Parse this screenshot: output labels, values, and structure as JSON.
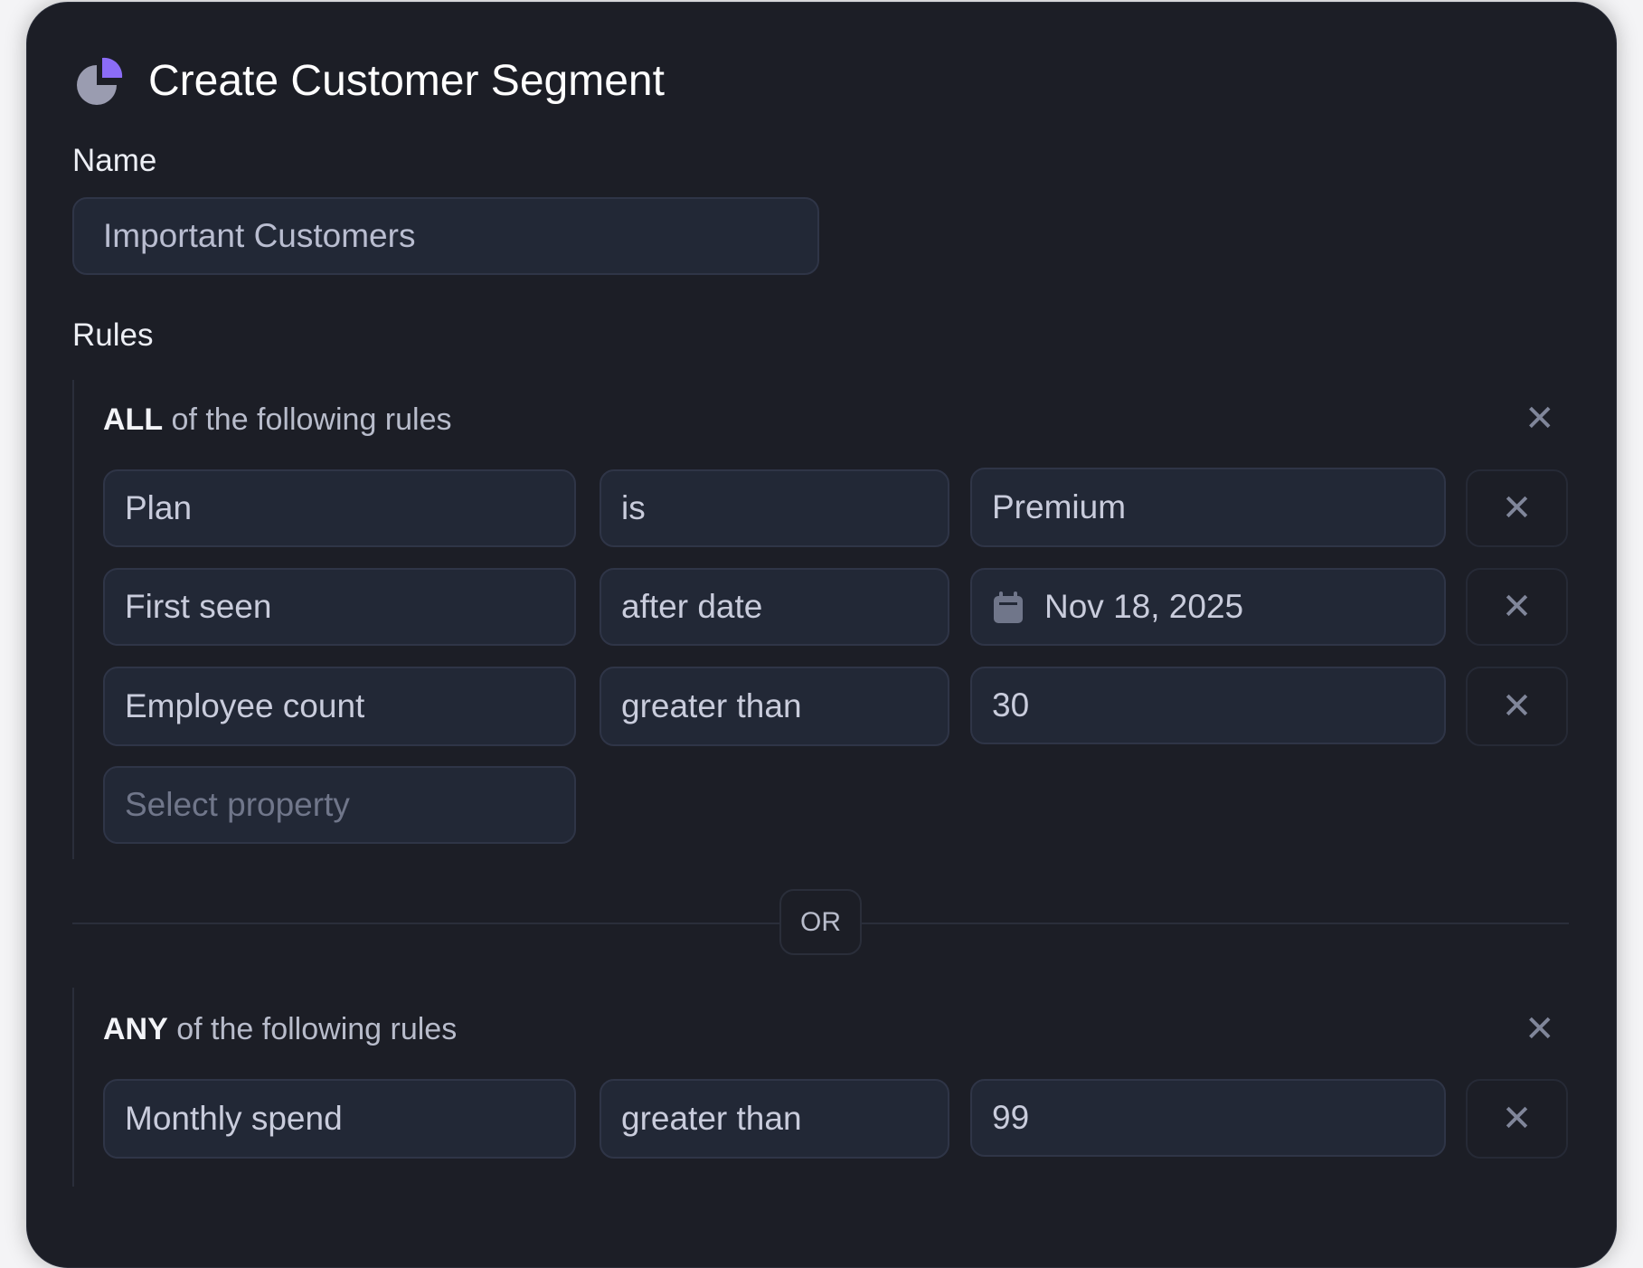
{
  "header": {
    "title": "Create Customer Segment",
    "icon": "pie-chart-icon",
    "accent": "#8b6cf6"
  },
  "name": {
    "label": "Name",
    "value": "Important Customers"
  },
  "rules": {
    "label": "Rules",
    "separator": "OR",
    "groups": [
      {
        "quantifier": "ALL",
        "suffix": "of the following rules",
        "rows": [
          {
            "property": "Plan",
            "operator": "is",
            "value": "Premium"
          },
          {
            "property": "First seen",
            "operator": "after date",
            "value": "Nov 18, 2025"
          },
          {
            "property": "Employee count",
            "operator": "greater than",
            "value": "30"
          }
        ],
        "placeholder": "Select property"
      },
      {
        "quantifier": "ANY",
        "suffix": "of the following rules",
        "rows": [
          {
            "property": "Monthly spend",
            "operator": "greater than",
            "value": "99"
          }
        ]
      }
    ]
  }
}
